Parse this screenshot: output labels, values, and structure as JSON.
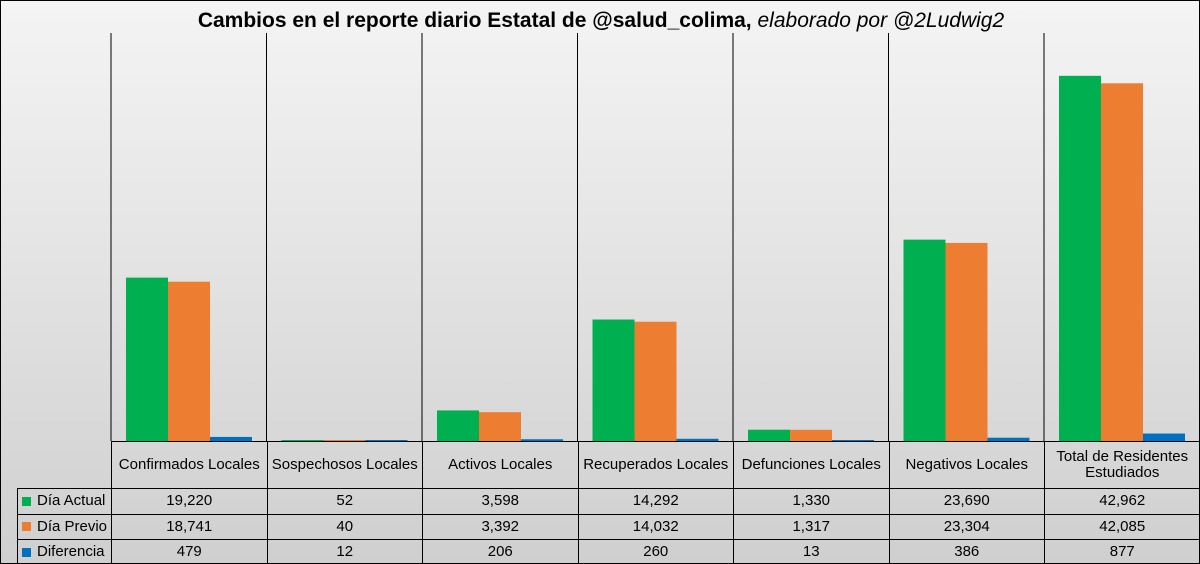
{
  "title": {
    "main": "Cambios en el reporte diario Estatal de @salud_colima,",
    "credit": "elaborado por @2Ludwig2"
  },
  "chart_data": {
    "type": "bar",
    "categories": [
      "Confirmados Locales",
      "Sospechosos Locales",
      "Activos Locales",
      "Recuperados Locales",
      "Defunciones Locales",
      "Negativos Locales",
      "Total de Residentes Estudiados"
    ],
    "series": [
      {
        "name": "Día Actual",
        "color": "#00b050",
        "values": [
          19220,
          52,
          3598,
          14292,
          1330,
          23690,
          42962
        ],
        "labels": [
          "19,220",
          "52",
          "3,598",
          "14,292",
          "1,330",
          "23,690",
          "42,962"
        ]
      },
      {
        "name": "Día Previo",
        "color": "#ed7d31",
        "values": [
          18741,
          40,
          3392,
          14032,
          1317,
          23304,
          42085
        ],
        "labels": [
          "18,741",
          "40",
          "3,392",
          "14,032",
          "1,317",
          "23,304",
          "42,085"
        ]
      },
      {
        "name": "Diferencia",
        "color": "#0070c0",
        "values": [
          479,
          12,
          206,
          260,
          13,
          386,
          877
        ],
        "labels": [
          "479",
          "12",
          "206",
          "260",
          "13",
          "386",
          "877"
        ]
      }
    ],
    "ylim": [
      0,
      48000
    ],
    "grid": false,
    "legend": "data-table"
  }
}
